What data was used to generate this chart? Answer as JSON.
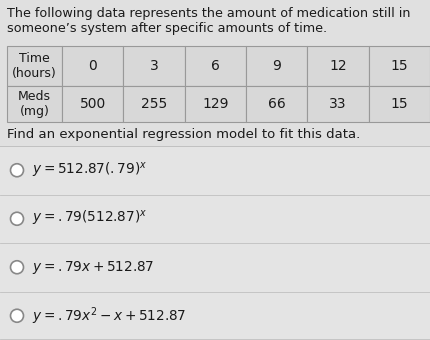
{
  "title_line1": "The following data represents the amount of medication still in",
  "title_line2": "someone’s system after specific amounts of time.",
  "row1_header": "Time\n(hours)",
  "row2_header": "Meds\n(mg)",
  "col_values": [
    "0",
    "3",
    "6",
    "9",
    "12",
    "15"
  ],
  "meds_values": [
    "500",
    "255",
    "129",
    "66",
    "33",
    "15"
  ],
  "question": "Find an exponential regression model to fit this data.",
  "option1": "y = 512.87(.79)^{x}",
  "option2": "y = .79(512.87)^{x}",
  "option3": "y = .79x + 512.87",
  "option4": "y = .79x^{2} - x + 512.87",
  "bg_color": "#e0e0e0",
  "table_cell_color": "#d8d8d8",
  "table_border_color": "#999999",
  "text_color": "#1a1a1a",
  "option_bg": "#e8e8e8",
  "divider_color": "#c0c0c0",
  "title_fontsize": 9.2,
  "table_fontsize": 10.0,
  "question_fontsize": 9.5,
  "option_fontsize": 9.8,
  "fig_width": 4.3,
  "fig_height": 3.4,
  "dpi": 100
}
